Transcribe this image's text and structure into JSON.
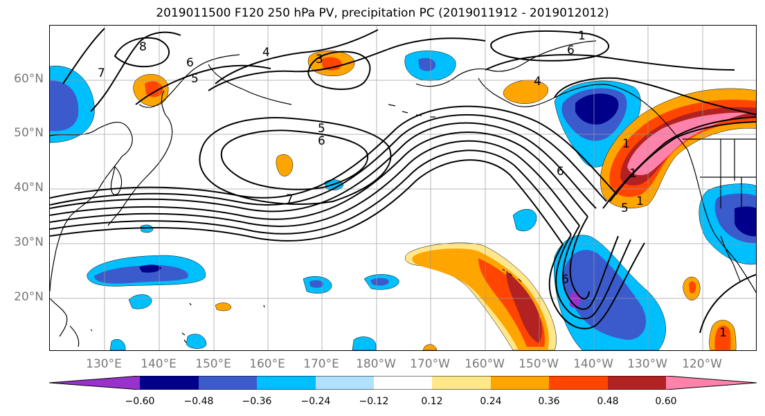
{
  "title": "2019011500 F120 250 hPa PV, precipitation PC (2019011912 - 2019012012)",
  "lat_labels": [
    "60°N",
    "50°N",
    "40°N",
    "30°N",
    "20°N"
  ],
  "lon_labels": [
    "130°E",
    "140°E",
    "150°E",
    "160°E",
    "170°E",
    "180°W",
    "170°W",
    "160°W",
    "150°W",
    "140°W",
    "130°W",
    "120°W"
  ],
  "colorbar": {
    "ticks": [
      "−0.60",
      "−0.48",
      "−0.36",
      "−0.24",
      "−0.12",
      "0.12",
      "0.24",
      "0.36",
      "0.48",
      "0.60"
    ],
    "colors": [
      "#9932cc",
      "#00008b",
      "#3b5bcc",
      "#00bfff",
      "#b0e2ff",
      "#ffffff",
      "#ffe78a",
      "#ffa500",
      "#ff4500",
      "#b22222",
      "#ff82ab"
    ]
  },
  "contour_labels": [
    "8",
    "7",
    "6",
    "5",
    "4",
    "3",
    "1",
    "6",
    "5",
    "6",
    "7",
    "4",
    "6",
    "6",
    "5",
    "1",
    "1",
    "1",
    "1"
  ]
}
